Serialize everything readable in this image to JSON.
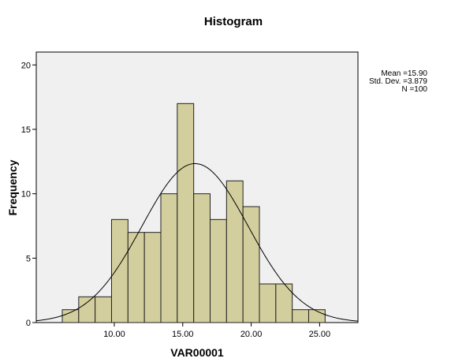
{
  "chart_data": {
    "type": "bar",
    "title": "Histogram",
    "xlabel": "VAR00001",
    "ylabel": "Frequency",
    "bin_width": 1.2,
    "bins": [
      {
        "start": 6.2,
        "end": 7.4,
        "count": 1
      },
      {
        "start": 7.4,
        "end": 8.6,
        "count": 2
      },
      {
        "start": 8.6,
        "end": 9.8,
        "count": 2
      },
      {
        "start": 9.8,
        "end": 11.0,
        "count": 8
      },
      {
        "start": 11.0,
        "end": 12.2,
        "count": 7
      },
      {
        "start": 12.2,
        "end": 13.4,
        "count": 7
      },
      {
        "start": 13.4,
        "end": 14.6,
        "count": 10
      },
      {
        "start": 14.6,
        "end": 15.8,
        "count": 17
      },
      {
        "start": 15.8,
        "end": 17.0,
        "count": 10
      },
      {
        "start": 17.0,
        "end": 18.2,
        "count": 8
      },
      {
        "start": 18.2,
        "end": 19.4,
        "count": 11
      },
      {
        "start": 19.4,
        "end": 20.6,
        "count": 9
      },
      {
        "start": 20.6,
        "end": 21.8,
        "count": 3
      },
      {
        "start": 21.8,
        "end": 23.0,
        "count": 3
      },
      {
        "start": 23.0,
        "end": 24.2,
        "count": 1
      },
      {
        "start": 24.2,
        "end": 25.4,
        "count": 1
      }
    ],
    "xlim": [
      4.3,
      27.8
    ],
    "ylim": [
      0,
      21
    ],
    "xticks": [
      {
        "value": 10,
        "label": "10.00"
      },
      {
        "value": 15,
        "label": "15.00"
      },
      {
        "value": 20,
        "label": "20.00"
      },
      {
        "value": 25,
        "label": "25.00"
      }
    ],
    "yticks": [
      {
        "value": 0,
        "label": "0"
      },
      {
        "value": 5,
        "label": "5"
      },
      {
        "value": 10,
        "label": "10"
      },
      {
        "value": 15,
        "label": "15"
      },
      {
        "value": 20,
        "label": "20"
      }
    ],
    "normal_curve": {
      "mean": 15.9,
      "std_dev": 3.879,
      "n": 100
    },
    "stats_text": [
      "Mean =15.90",
      "Std. Dev. =3.879",
      "N =100"
    ],
    "grid": false,
    "legend_position": "top-right",
    "colors": {
      "plot_background": "#f0f0f0",
      "bar_fill": "#d3ce9d",
      "bar_stroke": "#222222",
      "curve": "#000000"
    }
  }
}
